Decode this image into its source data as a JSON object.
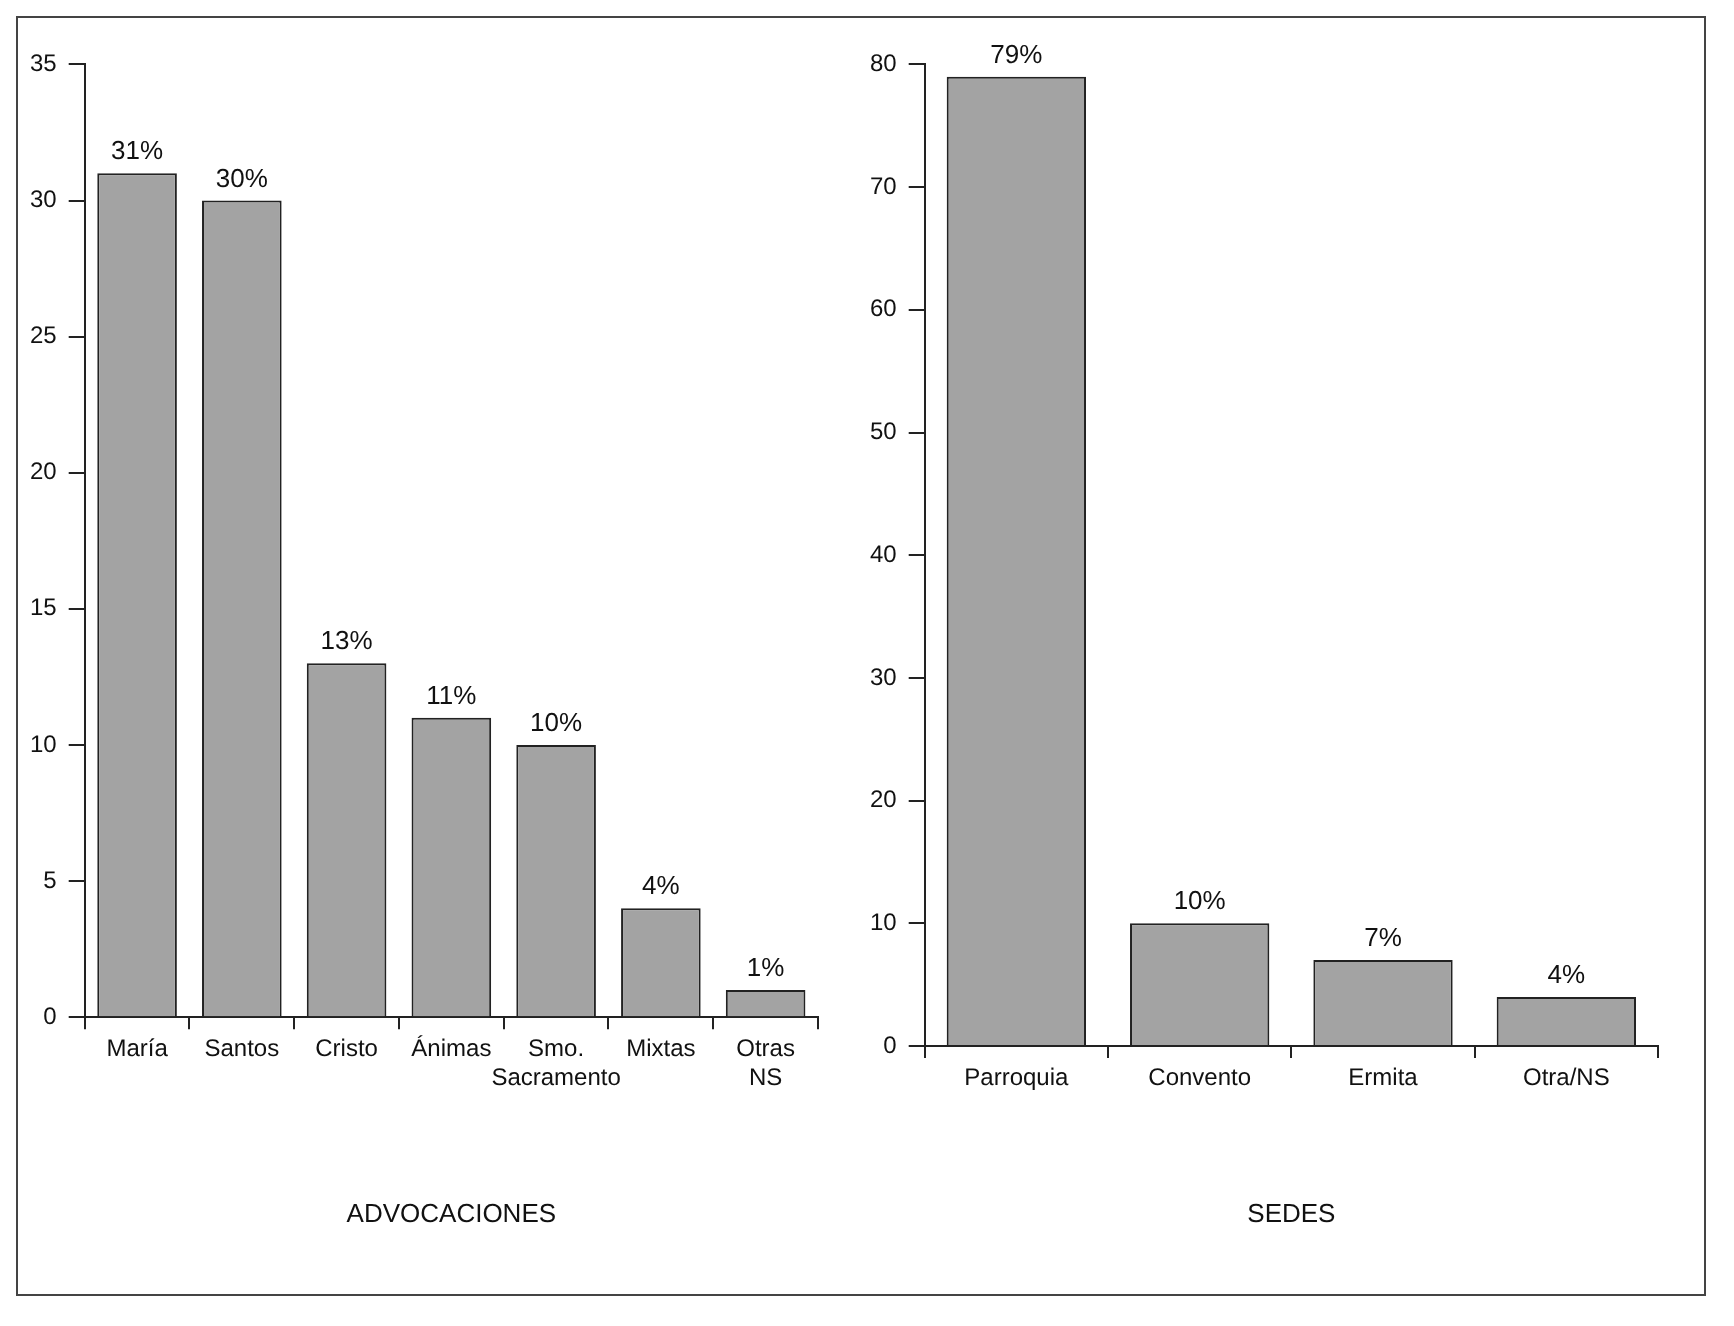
{
  "chart_data": [
    {
      "type": "bar",
      "xlabel": "ADVOCACIONES",
      "categories": [
        "María",
        "Santos",
        "Cristo",
        "Ánimas",
        "Smo. Sacramento",
        "Mixtas",
        "Otras NS"
      ],
      "values": [
        31,
        30,
        13,
        11,
        10,
        4,
        1
      ],
      "value_labels": [
        "31%",
        "30%",
        "13%",
        "11%",
        "10%",
        "4%",
        "1%"
      ],
      "color": "#a3a3a3",
      "ylim": [
        0,
        35
      ],
      "yticks": [
        0,
        5,
        10,
        15,
        20,
        25,
        30,
        35
      ],
      "grid": false,
      "legend": false
    },
    {
      "type": "bar",
      "xlabel": "SEDES",
      "categories": [
        "Parroquia",
        "Convento",
        "Ermita",
        "Otra/NS"
      ],
      "values": [
        79,
        10,
        7,
        4
      ],
      "value_labels": [
        "79%",
        "10%",
        "7%",
        "4%"
      ],
      "color": "#a3a3a3",
      "ylim": [
        0,
        80
      ],
      "yticks": [
        0,
        10,
        20,
        30,
        40,
        50,
        60,
        70,
        80
      ],
      "grid": false,
      "legend": false
    }
  ]
}
